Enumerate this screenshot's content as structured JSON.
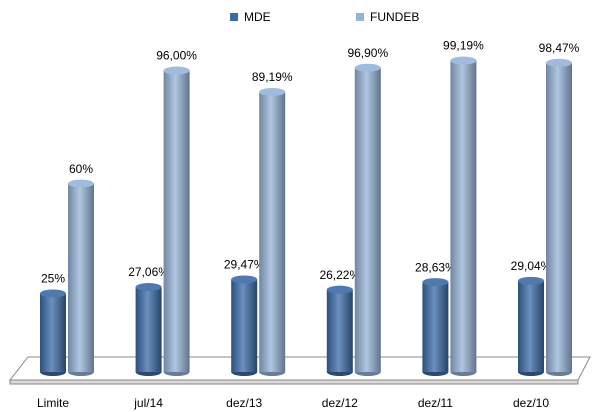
{
  "chart_data": {
    "type": "bar",
    "categories": [
      "Limite",
      "jul/14",
      "dez/13",
      "dez/12",
      "dez/11",
      "dez/10"
    ],
    "series": [
      {
        "name": "MDE",
        "color": "#3b6aa6",
        "values": [
          25,
          27.06,
          29.47,
          26.22,
          28.63,
          29.04
        ],
        "value_labels": [
          "25%",
          "27,06%",
          "29,47%",
          "26,22%",
          "28,63%",
          "29,04%"
        ]
      },
      {
        "name": "FUNDEB",
        "color": "#95b3d7",
        "values": [
          60,
          96,
          89.19,
          96.9,
          99.19,
          98.47
        ],
        "value_labels": [
          "60%",
          "96,00%",
          "89,19%",
          "96,90%",
          "99,19%",
          "98,47%"
        ]
      }
    ],
    "legend": "top"
  }
}
